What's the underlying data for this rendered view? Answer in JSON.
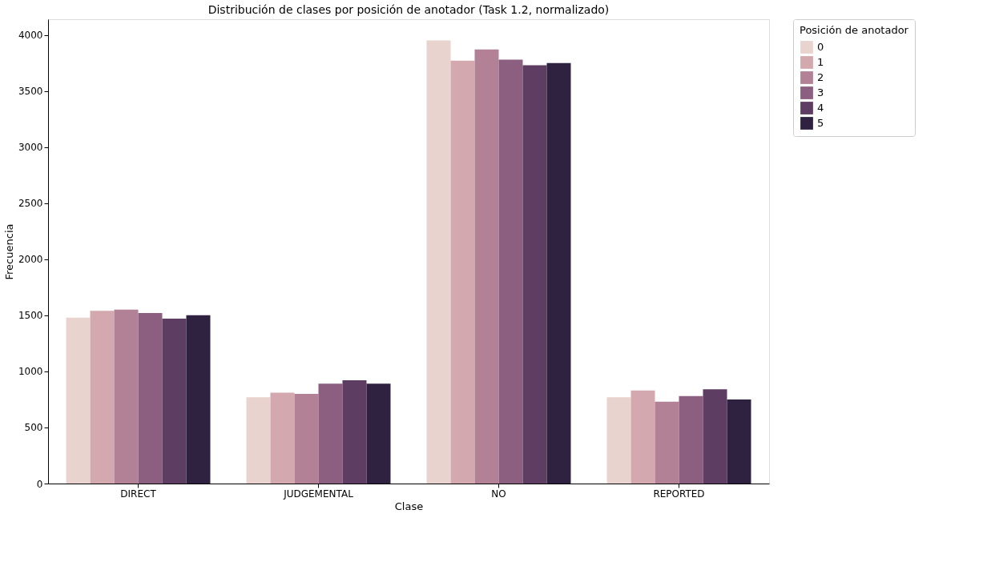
{
  "chart_data": {
    "type": "bar",
    "title": "Distribución de clases por posición de anotador (Task 1.2, normalizado)",
    "xlabel": "Clase",
    "ylabel": "Frecuencia",
    "legend_title": "Posición de anotador",
    "categories": [
      "DIRECT",
      "JUDGEMENTAL",
      "NO",
      "REPORTED"
    ],
    "series": [
      {
        "name": "0",
        "color": "#e9d3cf",
        "values": [
          1480,
          770,
          3950,
          770
        ]
      },
      {
        "name": "1",
        "color": "#d3a8ae",
        "values": [
          1540,
          810,
          3770,
          830
        ]
      },
      {
        "name": "2",
        "color": "#b38196",
        "values": [
          1550,
          800,
          3870,
          730
        ]
      },
      {
        "name": "3",
        "color": "#8c5e80",
        "values": [
          1520,
          890,
          3780,
          780
        ]
      },
      {
        "name": "4",
        "color": "#5e3d63",
        "values": [
          1470,
          920,
          3730,
          840
        ]
      },
      {
        "name": "5",
        "color": "#2f2240",
        "values": [
          1500,
          890,
          3750,
          750
        ]
      }
    ],
    "ylim": [
      0,
      4140
    ],
    "yticks": [
      0,
      500,
      1000,
      1500,
      2000,
      2500,
      3000,
      3500,
      4000
    ],
    "grid": false,
    "legend": "top right"
  }
}
